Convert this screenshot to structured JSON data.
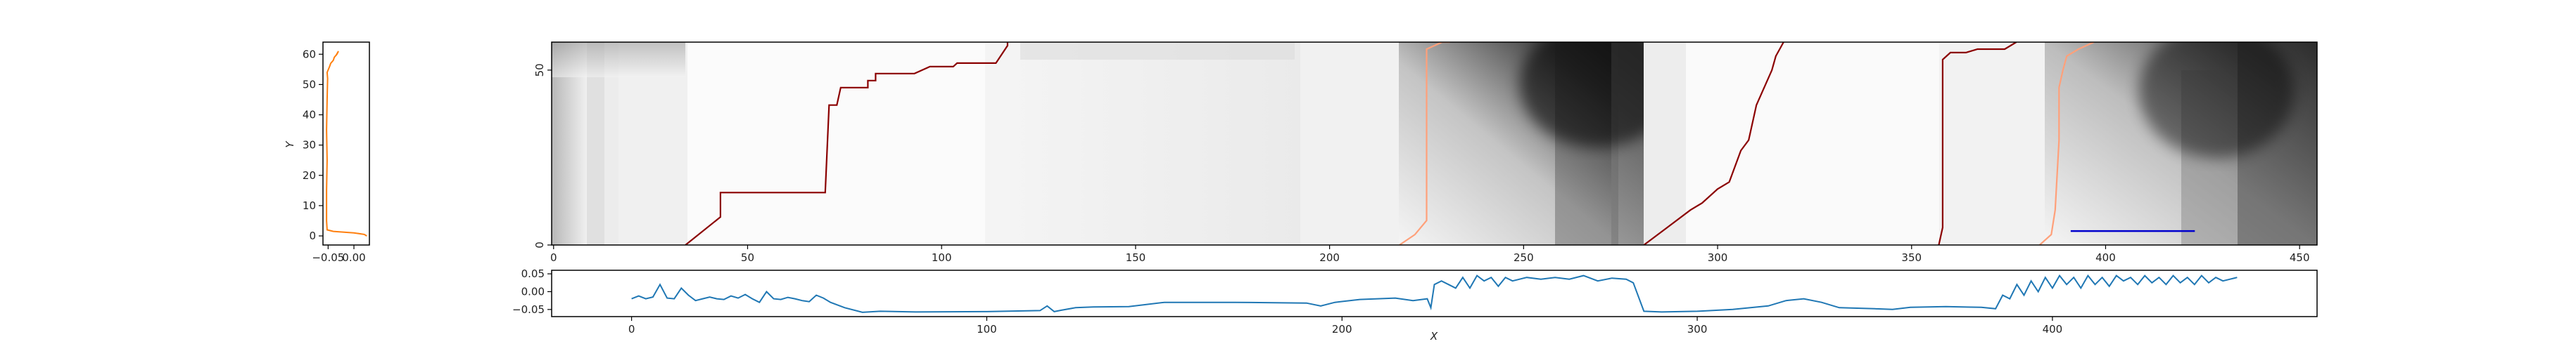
{
  "chart_data": [
    {
      "id": "left",
      "type": "line",
      "ylabel": "Y",
      "xlim": [
        -0.06,
        0.03
      ],
      "ylim": [
        -3,
        64
      ],
      "x_ticks": [
        -0.05,
        0.0
      ],
      "x_tick_labels": [
        "−0.05",
        "0.00"
      ],
      "y_ticks": [
        0,
        10,
        20,
        30,
        40,
        50,
        60
      ],
      "y_tick_labels": [
        "0",
        "10",
        "20",
        "30",
        "40",
        "50",
        "60"
      ],
      "series": [
        {
          "color": "#ff7f0e",
          "points": [
            [
              0.025,
              0
            ],
            [
              0.02,
              0.5
            ],
            [
              0.0,
              1
            ],
            [
              -0.04,
              1.5
            ],
            [
              -0.052,
              2
            ],
            [
              -0.053,
              5
            ],
            [
              -0.053,
              15
            ],
            [
              -0.052,
              25
            ],
            [
              -0.053,
              35
            ],
            [
              -0.052,
              45
            ],
            [
              -0.051,
              52
            ],
            [
              -0.052,
              54
            ],
            [
              -0.047,
              56
            ],
            [
              -0.045,
              57
            ],
            [
              -0.04,
              58
            ],
            [
              -0.038,
              59
            ],
            [
              -0.033,
              60
            ],
            [
              -0.03,
              61
            ],
            [
              -0.035,
              59.5
            ]
          ]
        }
      ]
    },
    {
      "id": "main",
      "type": "heatmap",
      "xlim": [
        -0.5,
        454.5
      ],
      "ylim": [
        0,
        58
      ],
      "x_ticks": [
        0,
        50,
        100,
        150,
        200,
        250,
        300,
        350,
        400,
        450
      ],
      "x_tick_labels": [
        "0",
        "50",
        "100",
        "150",
        "200",
        "250",
        "300",
        "350",
        "400",
        "450"
      ],
      "y_ticks": [
        0,
        50
      ],
      "y_tick_labels": [
        "0",
        "50"
      ],
      "colormap": "greys",
      "overlay_paths": [
        {
          "color": "#8b0000",
          "points": [
            [
              34,
              0
            ],
            [
              43,
              8
            ],
            [
              43,
              15
            ],
            [
              70,
              15
            ],
            [
              71,
              40
            ],
            [
              73,
              40
            ],
            [
              74,
              45
            ],
            [
              81,
              45
            ],
            [
              81,
              47
            ],
            [
              83,
              47
            ],
            [
              83,
              49
            ],
            [
              93,
              49
            ],
            [
              97,
              51
            ],
            [
              103,
              51
            ],
            [
              104,
              52
            ],
            [
              114,
              52
            ],
            [
              117,
              57
            ],
            [
              117,
              58
            ]
          ]
        },
        {
          "color": "#ffa07a",
          "points": [
            [
              218,
              0
            ],
            [
              222,
              3
            ],
            [
              225,
              7
            ],
            [
              225,
              56
            ],
            [
              229,
              58
            ],
            [
              231,
              58
            ]
          ]
        },
        {
          "color": "#8b0000",
          "points": [
            [
              281,
              0
            ],
            [
              287,
              5
            ],
            [
              293,
              10
            ],
            [
              296,
              12
            ],
            [
              300,
              16
            ],
            [
              303,
              18
            ],
            [
              304,
              21
            ],
            [
              306,
              27
            ],
            [
              308,
              30
            ],
            [
              310,
              40
            ],
            [
              312,
              45
            ],
            [
              314,
              50
            ],
            [
              315,
              54
            ],
            [
              316,
              56
            ],
            [
              317,
              58
            ]
          ]
        },
        {
          "color": "#8b0000",
          "points": [
            [
              357,
              0
            ],
            [
              358,
              5
            ],
            [
              358,
              40
            ],
            [
              358,
              53
            ],
            [
              360,
              55
            ],
            [
              364,
              55
            ],
            [
              367,
              56
            ],
            [
              374,
              56
            ],
            [
              377,
              58
            ]
          ]
        },
        {
          "color": "#ffa07a",
          "points": [
            [
              383,
              0
            ],
            [
              386,
              3
            ],
            [
              387,
              10
            ],
            [
              388,
              30
            ],
            [
              388,
              45
            ],
            [
              389,
              50
            ],
            [
              390,
              54
            ],
            [
              393,
              56
            ],
            [
              397,
              58
            ]
          ]
        }
      ],
      "segment": {
        "color": "#0000cd",
        "x": [
          391,
          423
        ],
        "y": 4
      }
    },
    {
      "id": "bottom",
      "type": "line",
      "xlabel": "X",
      "xlim": [
        -22.5,
        474.5
      ],
      "ylim": [
        -0.07,
        0.06
      ],
      "x_ticks": [
        0,
        100,
        200,
        300,
        400
      ],
      "x_tick_labels": [
        "0",
        "100",
        "200",
        "300",
        "400"
      ],
      "y_ticks": [
        0.05,
        0.0,
        -0.05
      ],
      "y_tick_labels": [
        "0.05",
        "0.00",
        "−0.05"
      ],
      "series": [
        {
          "color": "#1f77b4",
          "points": [
            [
              0,
              -0.02
            ],
            [
              2,
              -0.012
            ],
            [
              4,
              -0.02
            ],
            [
              6,
              -0.015
            ],
            [
              8,
              0.02
            ],
            [
              10,
              -0.018
            ],
            [
              12,
              -0.02
            ],
            [
              14,
              0.01
            ],
            [
              16,
              -0.01
            ],
            [
              18,
              -0.025
            ],
            [
              20,
              -0.02
            ],
            [
              22,
              -0.015
            ],
            [
              24,
              -0.02
            ],
            [
              26,
              -0.022
            ],
            [
              28,
              -0.012
            ],
            [
              30,
              -0.018
            ],
            [
              32,
              -0.008
            ],
            [
              34,
              -0.02
            ],
            [
              36,
              -0.03
            ],
            [
              38,
              0.0
            ],
            [
              40,
              -0.02
            ],
            [
              42,
              -0.022
            ],
            [
              44,
              -0.016
            ],
            [
              46,
              -0.02
            ],
            [
              48,
              -0.025
            ],
            [
              50,
              -0.028
            ],
            [
              52,
              -0.01
            ],
            [
              54,
              -0.018
            ],
            [
              56,
              -0.03
            ],
            [
              60,
              -0.045
            ],
            [
              65,
              -0.058
            ],
            [
              70,
              -0.055
            ],
            [
              80,
              -0.057
            ],
            [
              100,
              -0.056
            ],
            [
              115,
              -0.053
            ],
            [
              117,
              -0.04
            ],
            [
              119,
              -0.056
            ],
            [
              121,
              -0.052
            ],
            [
              125,
              -0.045
            ],
            [
              130,
              -0.043
            ],
            [
              140,
              -0.042
            ],
            [
              150,
              -0.03
            ],
            [
              170,
              -0.03
            ],
            [
              190,
              -0.032
            ],
            [
              194,
              -0.04
            ],
            [
              198,
              -0.03
            ],
            [
              205,
              -0.022
            ],
            [
              210,
              -0.02
            ],
            [
              215,
              -0.018
            ],
            [
              220,
              -0.025
            ],
            [
              224,
              -0.02
            ],
            [
              225,
              -0.045
            ],
            [
              226,
              0.02
            ],
            [
              228,
              0.03
            ],
            [
              230,
              0.02
            ],
            [
              232,
              0.01
            ],
            [
              234,
              0.04
            ],
            [
              236,
              0.01
            ],
            [
              238,
              0.045
            ],
            [
              240,
              0.03
            ],
            [
              242,
              0.04
            ],
            [
              244,
              0.015
            ],
            [
              246,
              0.04
            ],
            [
              248,
              0.03
            ],
            [
              250,
              0.035
            ],
            [
              252,
              0.04
            ],
            [
              256,
              0.035
            ],
            [
              260,
              0.04
            ],
            [
              264,
              0.035
            ],
            [
              268,
              0.045
            ],
            [
              272,
              0.03
            ],
            [
              276,
              0.038
            ],
            [
              280,
              0.035
            ],
            [
              282,
              0.025
            ],
            [
              285,
              -0.055
            ],
            [
              290,
              -0.057
            ],
            [
              300,
              -0.055
            ],
            [
              310,
              -0.05
            ],
            [
              320,
              -0.04
            ],
            [
              325,
              -0.025
            ],
            [
              330,
              -0.02
            ],
            [
              335,
              -0.03
            ],
            [
              340,
              -0.045
            ],
            [
              350,
              -0.048
            ],
            [
              355,
              -0.05
            ],
            [
              360,
              -0.044
            ],
            [
              370,
              -0.042
            ],
            [
              380,
              -0.044
            ],
            [
              384,
              -0.048
            ],
            [
              386,
              -0.01
            ],
            [
              388,
              -0.02
            ],
            [
              390,
              0.02
            ],
            [
              392,
              -0.01
            ],
            [
              394,
              0.03
            ],
            [
              396,
              0.0
            ],
            [
              398,
              0.04
            ],
            [
              400,
              0.01
            ],
            [
              402,
              0.045
            ],
            [
              404,
              0.02
            ],
            [
              406,
              0.04
            ],
            [
              408,
              0.01
            ],
            [
              410,
              0.045
            ],
            [
              412,
              0.02
            ],
            [
              414,
              0.04
            ],
            [
              416,
              0.015
            ],
            [
              418,
              0.045
            ],
            [
              420,
              0.03
            ],
            [
              422,
              0.04
            ],
            [
              424,
              0.02
            ],
            [
              426,
              0.045
            ],
            [
              428,
              0.025
            ],
            [
              430,
              0.04
            ],
            [
              432,
              0.02
            ],
            [
              434,
              0.045
            ],
            [
              436,
              0.025
            ],
            [
              438,
              0.04
            ],
            [
              440,
              0.02
            ],
            [
              442,
              0.045
            ],
            [
              444,
              0.025
            ],
            [
              446,
              0.04
            ],
            [
              448,
              0.03
            ],
            [
              450,
              0.035
            ],
            [
              452,
              0.04
            ]
          ]
        }
      ]
    }
  ]
}
